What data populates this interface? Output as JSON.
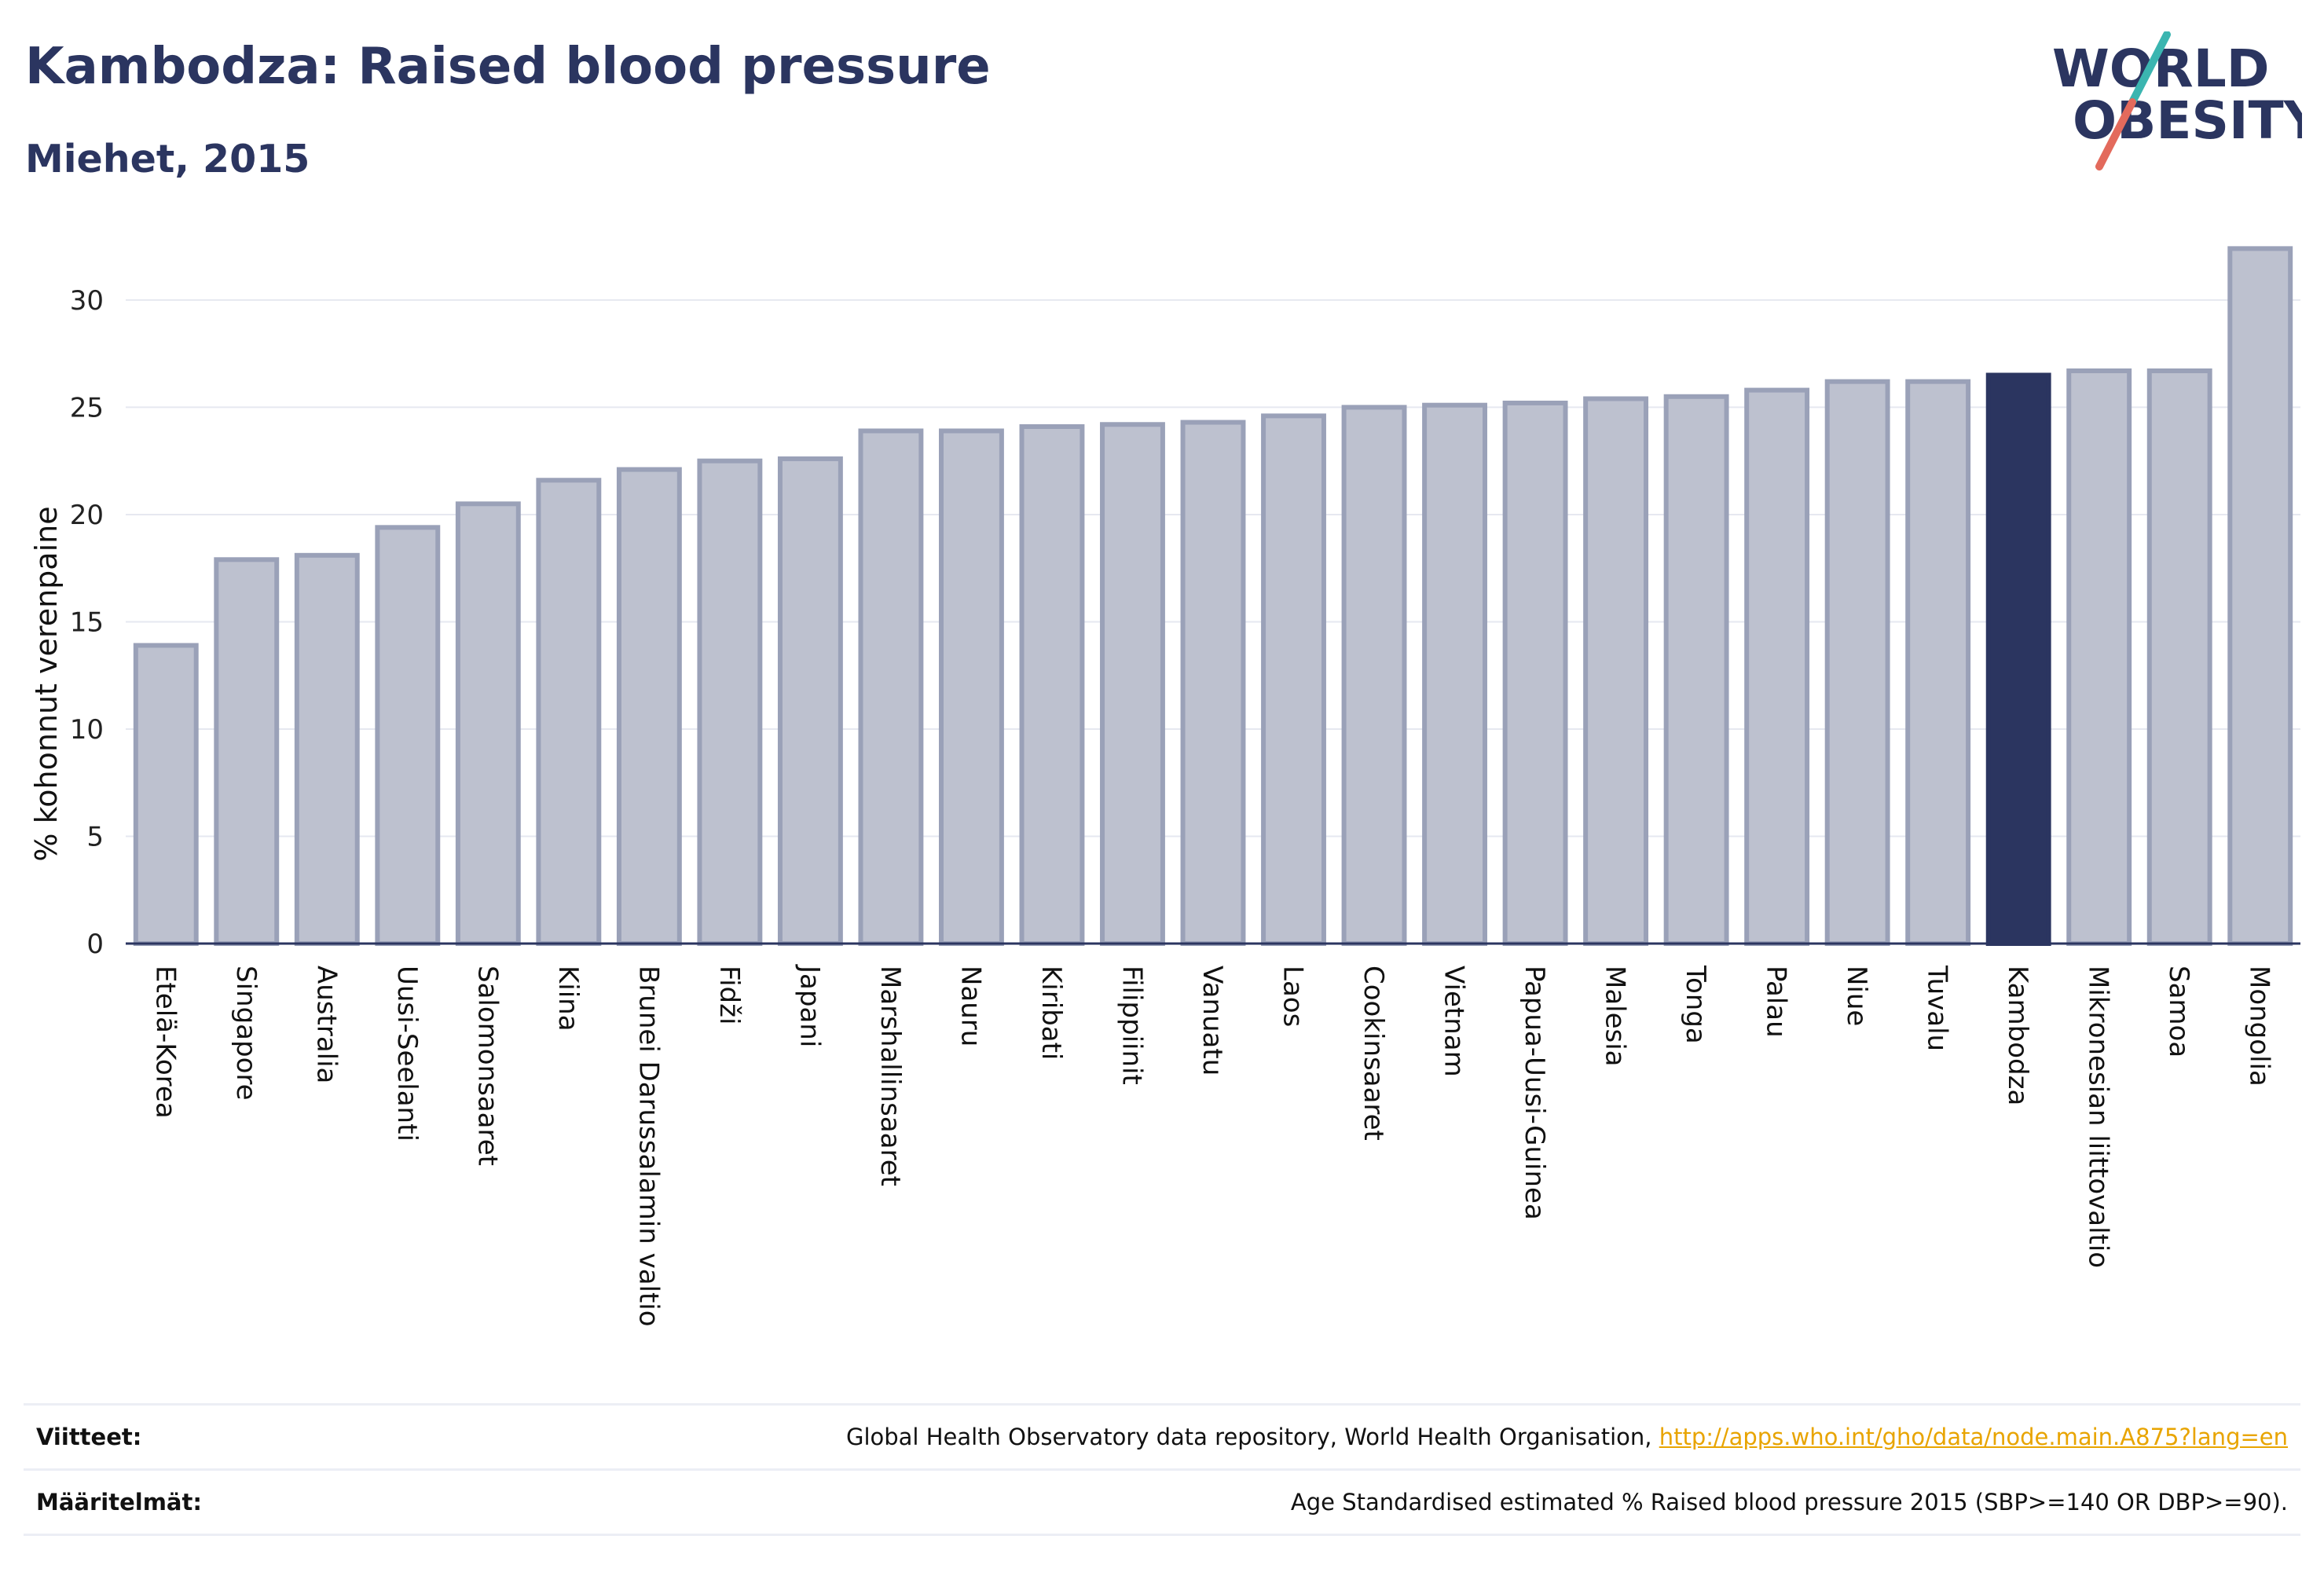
{
  "title": "Kambodza: Raised blood pressure",
  "subtitle": "Miehet, 2015",
  "logo": {
    "line1": "WORLD",
    "line2": "OBESITY",
    "accent_teal": "#3bb5b0",
    "accent_red": "#e36a5c",
    "text_color": "#2b3560"
  },
  "colors": {
    "bar_default": "#bdc1cf",
    "bar_edge": "#9aa1b8",
    "bar_highlight": "#2b3560",
    "axis": "#2b3560",
    "grid": "#e6e8f0"
  },
  "chart_data": {
    "type": "bar",
    "title": "Kambodza: Raised blood pressure",
    "subtitle": "Miehet, 2015",
    "xlabel": "",
    "ylabel": "% kohonnut verenpaine",
    "ylim": [
      0,
      33
    ],
    "yticks": [
      0,
      5,
      10,
      15,
      20,
      25,
      30
    ],
    "grid": true,
    "legend": "none",
    "highlight": "Kambodza",
    "categories": [
      "Etelä-Korea",
      "Singapore",
      "Australia",
      "Uusi-Seelanti",
      "Salomonsaaret",
      "Kiina",
      "Brunei Darussalamin valtio",
      "Fidži",
      "Japani",
      "Marshallinsaaret",
      "Nauru",
      "Kiribati",
      "Filippiinit",
      "Vanuatu",
      "Laos",
      "Cookinsaaret",
      "Vietnam",
      "Papua-Uusi-Guinea",
      "Malesia",
      "Tonga",
      "Palau",
      "Niue",
      "Tuvalu",
      "Kambodza",
      "Mikronesian liittovaltio",
      "Samoa",
      "Mongolia"
    ],
    "values": [
      13.9,
      17.9,
      18.1,
      19.4,
      20.5,
      21.6,
      22.1,
      22.5,
      22.6,
      23.9,
      23.9,
      24.1,
      24.2,
      24.3,
      24.6,
      25.0,
      25.1,
      25.2,
      25.4,
      25.5,
      25.8,
      26.2,
      26.2,
      26.5,
      26.7,
      26.7,
      32.4
    ]
  },
  "footer": {
    "sources_label": "Viitteet:",
    "sources_text": "Global Health Observatory data repository, World Health Organisation, ",
    "sources_link": "http://apps.who.int/gho/data/node.main.A875?lang=en",
    "definitions_label": "Määritelmät:",
    "definitions_text": "Age Standardised estimated % Raised blood pressure 2015 (SBP>=140 OR DBP>=90)."
  }
}
